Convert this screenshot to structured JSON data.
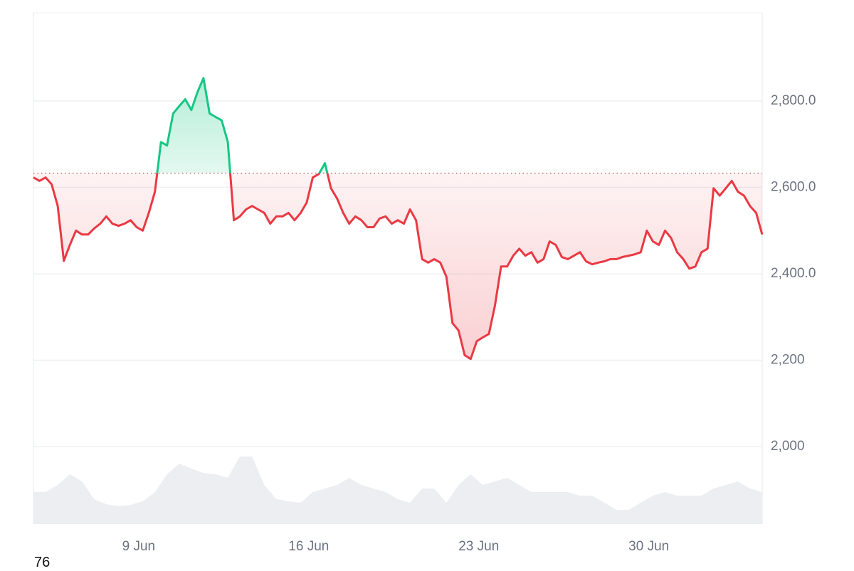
{
  "chart_data": {
    "type": "line",
    "footer_text": "76",
    "xlim": [
      0,
      120
    ],
    "xticks": [
      {
        "value": 17.33,
        "label": "9 Jun"
      },
      {
        "value": 45.33,
        "label": "16 Jun"
      },
      {
        "value": 73.33,
        "label": "23 Jun"
      },
      {
        "value": 101.33,
        "label": "30 Jun"
      }
    ],
    "ylim": [
      1821,
      3004
    ],
    "yticks": [
      {
        "value": 2000,
        "label": "2,000"
      },
      {
        "value": 2200,
        "label": "2,200"
      },
      {
        "value": 2400,
        "label": "2,400.0"
      },
      {
        "value": 2600,
        "label": "2,600.0"
      },
      {
        "value": 2800,
        "label": "2,800.0"
      }
    ],
    "grid": true,
    "baseline": 2633,
    "up_color": "#16c784",
    "down_color": "#ea3943",
    "values": [
      2623,
      2615,
      2623,
      2607,
      2557,
      2430,
      2467,
      2500,
      2491,
      2491,
      2505,
      2516,
      2533,
      2516,
      2511,
      2516,
      2524,
      2508,
      2500,
      2541,
      2590,
      2705,
      2697,
      2771,
      2788,
      2804,
      2779,
      2820,
      2853,
      2771,
      2763,
      2755,
      2705,
      2524,
      2533,
      2549,
      2557,
      2549,
      2541,
      2516,
      2533,
      2533,
      2541,
      2524,
      2541,
      2565,
      2623,
      2631,
      2656,
      2598,
      2574,
      2541,
      2516,
      2533,
      2524,
      2508,
      2508,
      2528,
      2533,
      2516,
      2524,
      2516,
      2549,
      2524,
      2434,
      2426,
      2434,
      2426,
      2393,
      2286,
      2269,
      2212,
      2203,
      2244,
      2253,
      2261,
      2327,
      2417,
      2417,
      2442,
      2458,
      2442,
      2450,
      2426,
      2434,
      2475,
      2467,
      2439,
      2434,
      2442,
      2450,
      2429,
      2422,
      2426,
      2429,
      2434,
      2434,
      2439,
      2442,
      2445,
      2450,
      2500,
      2475,
      2467,
      2500,
      2483,
      2450,
      2434,
      2412,
      2417,
      2450,
      2458,
      2598,
      2581,
      2598,
      2615,
      2590,
      2581,
      2557,
      2541,
      2491
    ],
    "volume": {
      "color": "#eceef2",
      "lim": [
        0,
        100
      ],
      "values": [
        45,
        45,
        55,
        70,
        60,
        35,
        28,
        25,
        27,
        32,
        45,
        70,
        85,
        78,
        72,
        70,
        65,
        95,
        95,
        55,
        35,
        32,
        30,
        45,
        50,
        55,
        65,
        55,
        50,
        45,
        35,
        30,
        50,
        50,
        30,
        55,
        70,
        55,
        60,
        65,
        55,
        45,
        45,
        45,
        45,
        40,
        40,
        30,
        20,
        20,
        30,
        40,
        45,
        40,
        40,
        40,
        50,
        55,
        60,
        50,
        45
      ]
    }
  }
}
